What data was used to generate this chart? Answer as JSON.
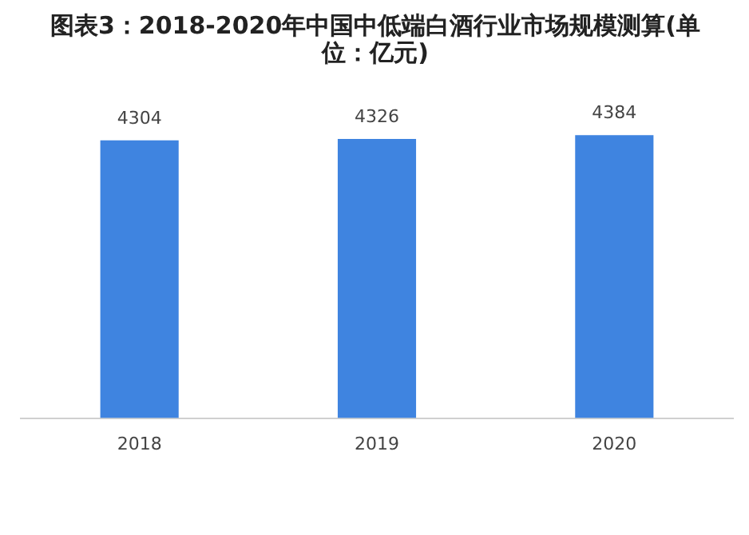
{
  "chart_data": {
    "type": "bar",
    "title": "图表3：2018-2020年中国中低端白酒行业市场规模测算(单位：亿元)",
    "categories": [
      "2018",
      "2019",
      "2020"
    ],
    "values": [
      4304,
      4326,
      4384
    ],
    "color": "#3f84e0",
    "data_labels": true,
    "grid": false,
    "legend": false
  }
}
